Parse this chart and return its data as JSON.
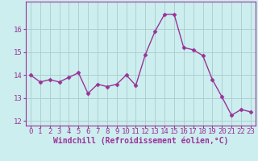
{
  "x": [
    0,
    1,
    2,
    3,
    4,
    5,
    6,
    7,
    8,
    9,
    10,
    11,
    12,
    13,
    14,
    15,
    16,
    17,
    18,
    19,
    20,
    21,
    22,
    23
  ],
  "y": [
    14.0,
    13.7,
    13.8,
    13.7,
    13.9,
    14.1,
    13.2,
    13.6,
    13.5,
    13.6,
    14.0,
    13.55,
    14.9,
    15.9,
    16.65,
    16.65,
    15.2,
    15.1,
    14.85,
    13.8,
    13.05,
    12.25,
    12.5,
    12.4
  ],
  "line_color": "#993399",
  "marker": "D",
  "marker_size": 2.5,
  "line_width": 1.0,
  "bg_color": "#cceeee",
  "grid_color": "#aacccc",
  "xlabel": "Windchill (Refroidissement éolien,°C)",
  "xlabel_color": "#993399",
  "xlabel_fontsize": 7,
  "tick_color": "#993399",
  "tick_fontsize": 6.5,
  "ylim": [
    11.8,
    17.2
  ],
  "xlim": [
    -0.5,
    23.5
  ],
  "yticks": [
    12,
    13,
    14,
    15,
    16
  ],
  "xticks": [
    0,
    1,
    2,
    3,
    4,
    5,
    6,
    7,
    8,
    9,
    10,
    11,
    12,
    13,
    14,
    15,
    16,
    17,
    18,
    19,
    20,
    21,
    22,
    23
  ]
}
